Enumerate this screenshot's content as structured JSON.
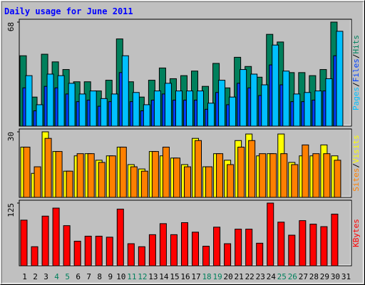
{
  "legend_separator": "/",
  "weekend_color": "#00805c",
  "weekday_color": "#000000",
  "weekend_days": [
    4,
    5,
    11,
    12,
    18,
    19,
    25,
    26
  ],
  "chart_data": [
    {
      "type": "bar",
      "title": "Daily usage for June 2011",
      "categories": [
        1,
        2,
        3,
        4,
        5,
        6,
        7,
        8,
        9,
        10,
        11,
        12,
        13,
        14,
        15,
        16,
        17,
        18,
        19,
        20,
        21,
        22,
        23,
        24,
        25,
        26,
        27,
        28,
        29,
        30,
        31
      ],
      "ylim": [
        0,
        68
      ],
      "yticks": [
        68
      ],
      "series": [
        {
          "name": "Hits",
          "color": "#00805c",
          "values": [
            46,
            19,
            47,
            42,
            37,
            29,
            29,
            23,
            30,
            57,
            29,
            19,
            30,
            38,
            31,
            33,
            36,
            26,
            41,
            25,
            45,
            39,
            32,
            60,
            55,
            35,
            35,
            33,
            37,
            68,
            0
          ]
        },
        {
          "name": "Files",
          "color": "#0040ff",
          "values": [
            25,
            10,
            26,
            25,
            21,
            16,
            17,
            13,
            16,
            35,
            16,
            10,
            17,
            21,
            17,
            17,
            17,
            11,
            22,
            14,
            28,
            25,
            20,
            40,
            27,
            16,
            16,
            17,
            23,
            46,
            0
          ]
        },
        {
          "name": "Pages",
          "color": "#00c0ff",
          "values": [
            33,
            14,
            34,
            33,
            28,
            21,
            23,
            18,
            21,
            46,
            22,
            14,
            23,
            28,
            23,
            23,
            23,
            15,
            30,
            19,
            37,
            34,
            27,
            53,
            36,
            21,
            22,
            23,
            31,
            62,
            0
          ]
        }
      ]
    },
    {
      "type": "bar",
      "categories": [
        1,
        2,
        3,
        4,
        5,
        6,
        7,
        8,
        9,
        10,
        11,
        12,
        13,
        14,
        15,
        16,
        17,
        18,
        19,
        20,
        21,
        22,
        23,
        24,
        25,
        26,
        27,
        28,
        29,
        30,
        31
      ],
      "ylim": [
        0,
        30
      ],
      "yticks": [
        30
      ],
      "series": [
        {
          "name": "Visits",
          "color": "#ffff00",
          "values": [
            23,
            11,
            30,
            21,
            12,
            19,
            20,
            17,
            19,
            23,
            15,
            13,
            21,
            19,
            18,
            15,
            27,
            14,
            20,
            17,
            26,
            29,
            19,
            20,
            29,
            16,
            19,
            19,
            24,
            19,
            0
          ]
        },
        {
          "name": "Sites",
          "color": "#ff8000",
          "values": [
            23,
            14,
            27,
            21,
            12,
            20,
            20,
            16,
            19,
            23,
            14,
            12,
            21,
            23,
            18,
            14,
            26,
            14,
            20,
            15,
            23,
            26,
            20,
            20,
            20,
            15,
            24,
            20,
            20,
            17,
            0
          ]
        }
      ]
    },
    {
      "type": "bar",
      "categories": [
        1,
        2,
        3,
        4,
        5,
        6,
        7,
        8,
        9,
        10,
        11,
        12,
        13,
        14,
        15,
        16,
        17,
        18,
        19,
        20,
        21,
        22,
        23,
        24,
        25,
        26,
        27,
        28,
        29,
        30,
        31
      ],
      "ylim": [
        0,
        125
      ],
      "yticks": [
        125
      ],
      "series": [
        {
          "name": "KBytes",
          "color": "#ff0000",
          "values": [
            91,
            38,
            99,
            115,
            80,
            49,
            59,
            59,
            57,
            113,
            44,
            38,
            62,
            84,
            62,
            86,
            67,
            39,
            77,
            44,
            73,
            73,
            45,
            125,
            87,
            61,
            90,
            83,
            78,
            103,
            0
          ]
        }
      ]
    }
  ]
}
